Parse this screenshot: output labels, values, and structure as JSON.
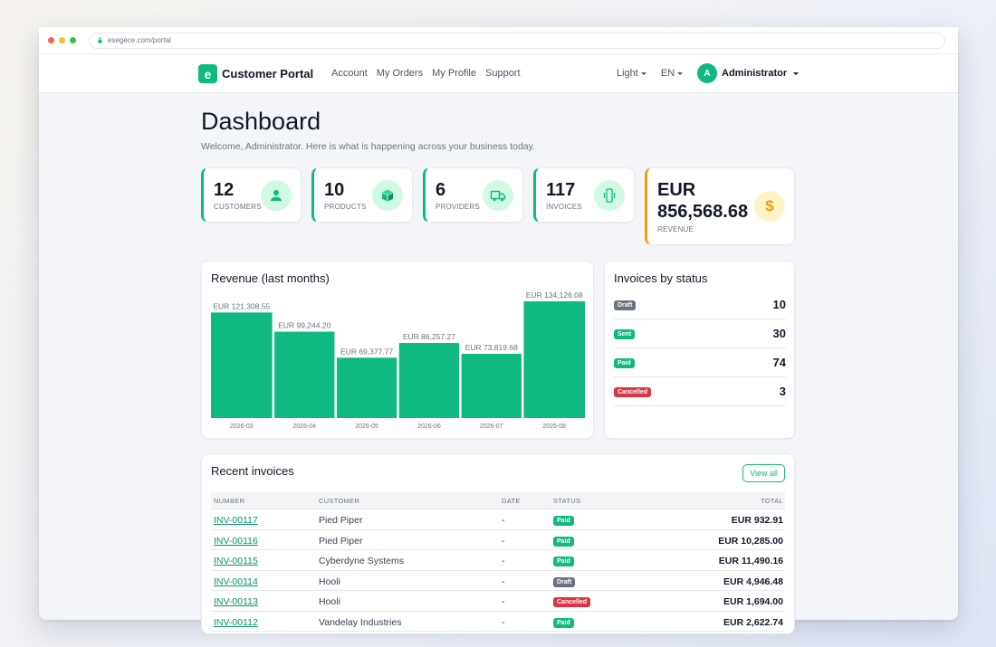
{
  "browser": {
    "url": "esegece.com/portal",
    "dot_colors": [
      "#ff5f57",
      "#febc2e",
      "#28c840"
    ]
  },
  "navbar": {
    "logo_letter": "e",
    "brand": "Customer Portal",
    "links": [
      "Account",
      "My Orders",
      "My Profile",
      "Support"
    ],
    "theme": "Light",
    "language": "EN",
    "user_initial": "A",
    "user_name": "Administrator"
  },
  "header": {
    "title": "Dashboard",
    "subtitle": "Welcome, Administrator. Here is what is happening across your business today."
  },
  "stats": [
    {
      "value": "12",
      "label": "CUSTOMERS",
      "icon": "users-icon"
    },
    {
      "value": "10",
      "label": "PRODUCTS",
      "icon": "box-icon"
    },
    {
      "value": "6",
      "label": "PROVIDERS",
      "icon": "truck-icon"
    },
    {
      "value": "117",
      "label": "INVOICES",
      "icon": "phone-vibrate-icon"
    },
    {
      "value": "EUR 856,568.68",
      "label": "REVENUE",
      "icon": "dollar-icon"
    }
  ],
  "revenue_card": {
    "title": "Revenue (last months)"
  },
  "chart_data": {
    "type": "bar",
    "title": "Revenue (last months)",
    "categories": [
      "2026-03",
      "2026-04",
      "2026-05",
      "2026-06",
      "2026-07",
      "2026-08"
    ],
    "values": [
      121308.55,
      99244.2,
      69377.77,
      86257.27,
      73819.68,
      134126.08
    ],
    "data_labels": [
      "EUR 121,308.55",
      "EUR 99,244.20",
      "EUR 69,377.77",
      "EUR 86,257.27",
      "EUR 73,819.68",
      "EUR 134,126.08"
    ],
    "bar_color": "#10b981"
  },
  "status_card": {
    "title": "Invoices by status",
    "rows": [
      {
        "label": "Draft",
        "count": "10",
        "color": "#6b7280"
      },
      {
        "label": "Sent",
        "count": "30",
        "color": "#10b981"
      },
      {
        "label": "Paid",
        "count": "74",
        "color": "#10b981"
      },
      {
        "label": "Cancelled",
        "count": "3",
        "color": "#dc3545"
      }
    ]
  },
  "recent": {
    "title": "Recent invoices",
    "view_all": "View all",
    "columns": [
      "NUMBER",
      "CUSTOMER",
      "DATE",
      "STATUS",
      "TOTAL"
    ],
    "rows": [
      {
        "number": "INV-00117",
        "customer": "Pied Piper",
        "date": "-",
        "status": "Paid",
        "total": "EUR 932.91"
      },
      {
        "number": "INV-00116",
        "customer": "Pied Piper",
        "date": "-",
        "status": "Paid",
        "total": "EUR 10,285.00"
      },
      {
        "number": "INV-00115",
        "customer": "Cyberdyne Systems",
        "date": "-",
        "status": "Paid",
        "total": "EUR 11,490.16"
      },
      {
        "number": "INV-00114",
        "customer": "Hooli",
        "date": "-",
        "status": "Draft",
        "total": "EUR 4,946.48"
      },
      {
        "number": "INV-00113",
        "customer": "Hooli",
        "date": "-",
        "status": "Cancelled",
        "total": "EUR 1,694.00"
      },
      {
        "number": "INV-00112",
        "customer": "Vandelay Industries",
        "date": "-",
        "status": "Paid",
        "total": "EUR 2,622.74"
      }
    ],
    "status_colors": {
      "Paid": "#10b981",
      "Draft": "#6b7280",
      "Cancelled": "#dc3545",
      "Sent": "#10b981"
    }
  }
}
